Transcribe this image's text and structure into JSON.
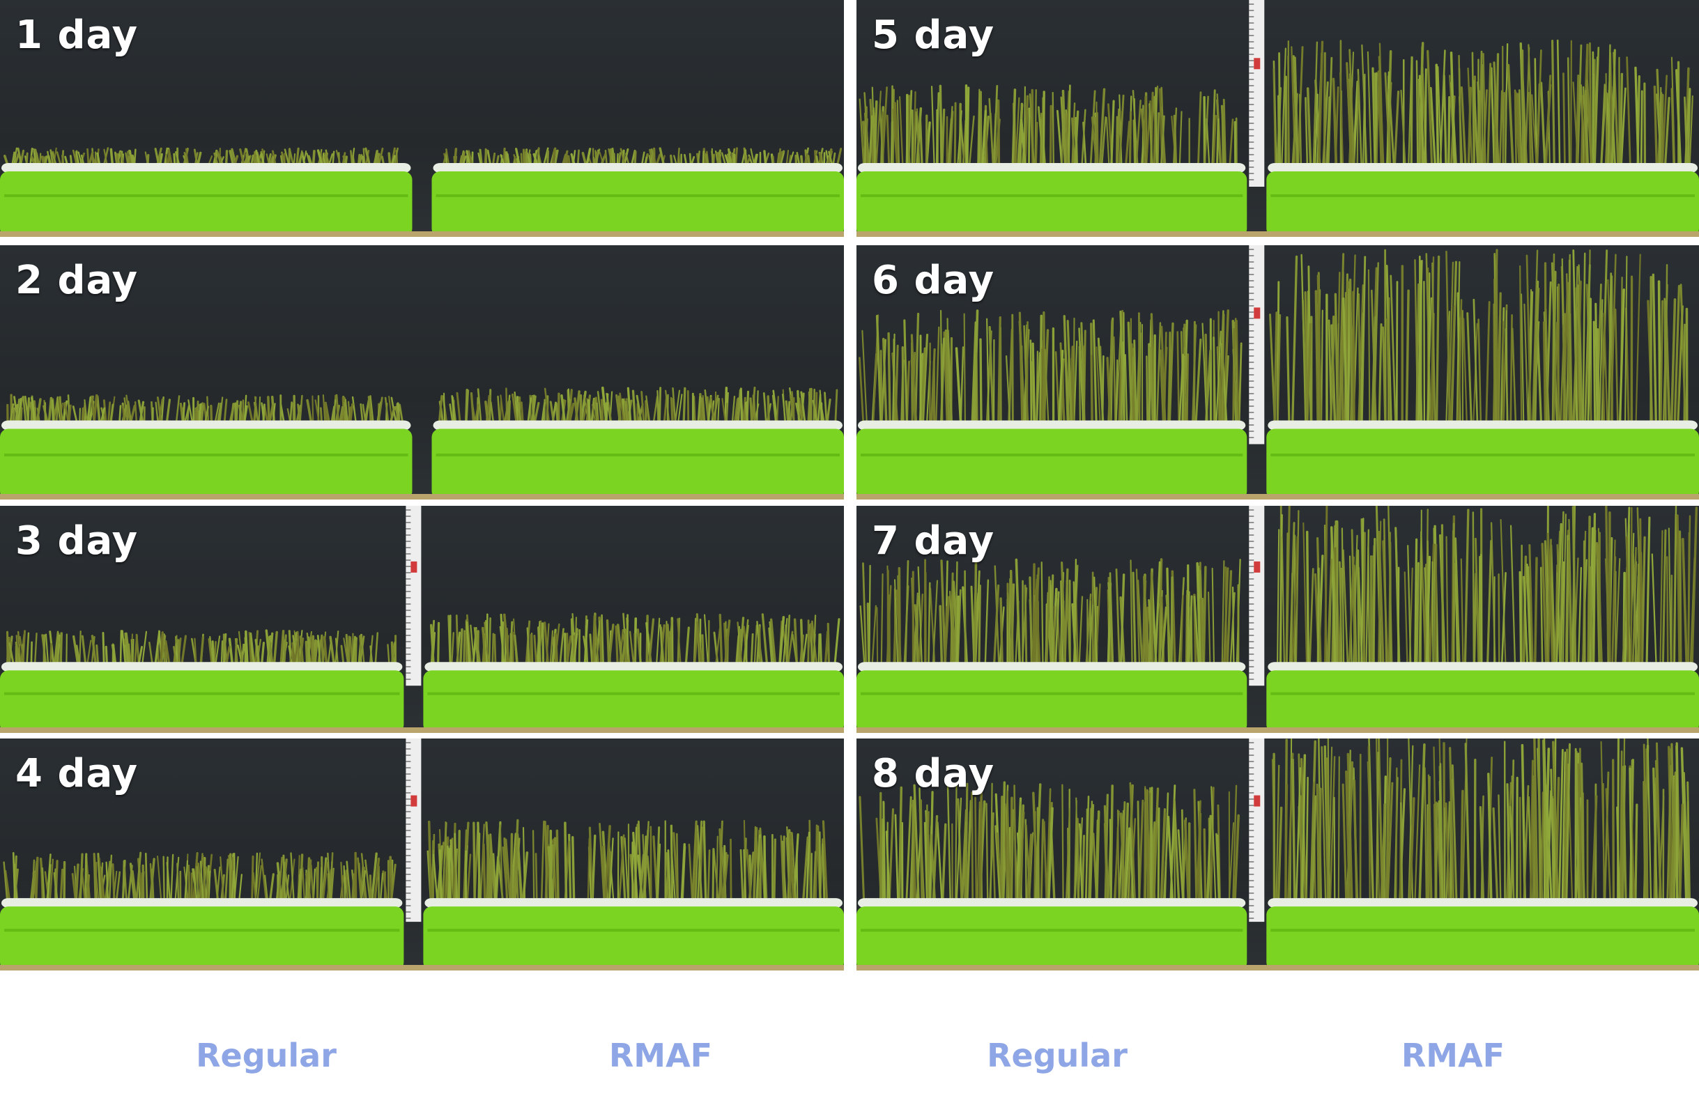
{
  "panels": [
    {
      "label": "1 day",
      "column": "left",
      "row": 0,
      "growth_regular": 0.06,
      "growth_rmaf": 0.06,
      "ruler": false
    },
    {
      "label": "2 day",
      "column": "left",
      "row": 1,
      "growth_regular": 0.1,
      "growth_rmaf": 0.13,
      "ruler": false
    },
    {
      "label": "3 day",
      "column": "left",
      "row": 2,
      "growth_regular": 0.14,
      "growth_rmaf": 0.22,
      "ruler": true
    },
    {
      "label": "4 day",
      "column": "left",
      "row": 3,
      "growth_regular": 0.2,
      "growth_rmaf": 0.35,
      "ruler": true
    },
    {
      "label": "5 day",
      "column": "right",
      "row": 0,
      "growth_regular": 0.34,
      "growth_rmaf": 0.54,
      "ruler": true
    },
    {
      "label": "6 day",
      "column": "right",
      "row": 1,
      "growth_regular": 0.45,
      "growth_rmaf": 0.7,
      "ruler": true
    },
    {
      "label": "7 day",
      "column": "right",
      "row": 2,
      "growth_regular": 0.47,
      "growth_rmaf": 0.73,
      "ruler": true
    },
    {
      "label": "8 day",
      "column": "right",
      "row": 3,
      "growth_regular": 0.52,
      "growth_rmaf": 0.75,
      "ruler": true
    }
  ],
  "captions": {
    "left_regular": "Regular",
    "left_rmaf": "RMAF",
    "right_regular": "Regular",
    "right_rmaf": "RMAF"
  },
  "colors": {
    "caption": "#8ea6e6",
    "tray": "#7ad421",
    "grass": "#5f9a35",
    "backdrop": "#272b2e"
  }
}
